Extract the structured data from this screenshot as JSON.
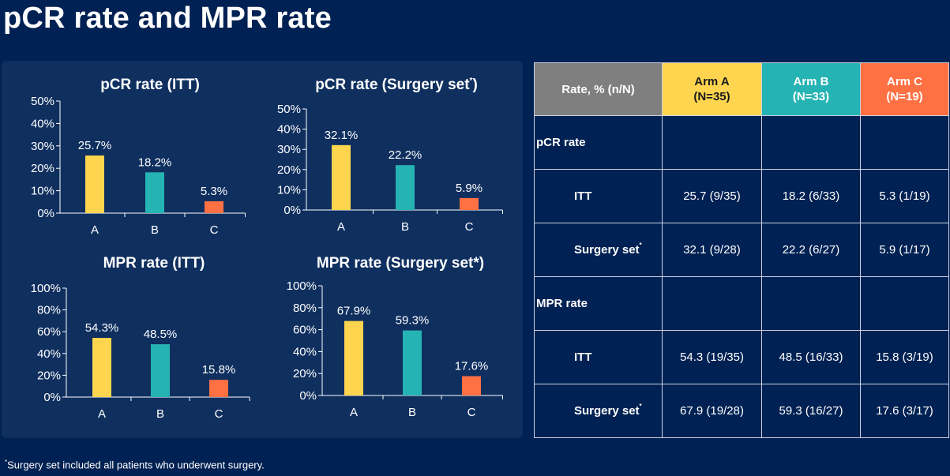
{
  "page": {
    "title": "pCR rate and MPR rate",
    "footnote_mark": "*",
    "footnote": "Surgery set included all patients who underwent surgery."
  },
  "colors": {
    "background": "#002153",
    "panel": "#0f2f5f",
    "arm_a": "#ffd54f",
    "arm_b": "#26b3b3",
    "arm_c": "#ff7043",
    "header_gray": "#7f7f7f"
  },
  "chart_data": [
    {
      "type": "bar",
      "title": "pCR rate (ITT)",
      "categories": [
        "A",
        "B",
        "C"
      ],
      "values": [
        25.7,
        18.2,
        5.3
      ],
      "value_labels": [
        "25.7%",
        "18.2%",
        "5.3%"
      ],
      "ylim": [
        0,
        50
      ],
      "yticks": [
        0,
        10,
        20,
        30,
        40,
        50
      ],
      "ytick_labels": [
        "0%",
        "10%",
        "20%",
        "30%",
        "40%",
        "50%"
      ],
      "xlabel": "",
      "ylabel": "",
      "grid": false
    },
    {
      "type": "bar",
      "title": "pCR rate (Surgery set",
      "title_sup": "*",
      "title_suffix": ")",
      "categories": [
        "A",
        "B",
        "C"
      ],
      "values": [
        32.1,
        22.2,
        5.9
      ],
      "value_labels": [
        "32.1%",
        "22.2%",
        "5.9%"
      ],
      "ylim": [
        0,
        50
      ],
      "yticks": [
        0,
        10,
        20,
        30,
        40,
        50
      ],
      "ytick_labels": [
        "0%",
        "10%",
        "20%",
        "30%",
        "40%",
        "50%"
      ],
      "xlabel": "",
      "ylabel": "",
      "grid": false
    },
    {
      "type": "bar",
      "title": "MPR rate (ITT)",
      "categories": [
        "A",
        "B",
        "C"
      ],
      "values": [
        54.3,
        48.5,
        15.8
      ],
      "value_labels": [
        "54.3%",
        "48.5%",
        "15.8%"
      ],
      "ylim": [
        0,
        100
      ],
      "yticks": [
        0,
        20,
        40,
        60,
        80,
        100
      ],
      "ytick_labels": [
        "0%",
        "20%",
        "40%",
        "60%",
        "80%",
        "100%"
      ],
      "xlabel": "",
      "ylabel": "",
      "grid": false
    },
    {
      "type": "bar",
      "title": "MPR rate (Surgery set*)",
      "categories": [
        "A",
        "B",
        "C"
      ],
      "values": [
        67.9,
        59.3,
        17.6
      ],
      "value_labels": [
        "67.9%",
        "59.3%",
        "17.6%"
      ],
      "ylim": [
        0,
        100
      ],
      "yticks": [
        0,
        20,
        40,
        60,
        80,
        100
      ],
      "ytick_labels": [
        "0%",
        "20%",
        "40%",
        "60%",
        "80%",
        "100%"
      ],
      "xlabel": "",
      "ylabel": "",
      "grid": false
    }
  ],
  "table": {
    "header": {
      "rate": "Rate, % (n/N)",
      "arm_a": "Arm A",
      "arm_a_n": "(N=35)",
      "arm_b": "Arm B",
      "arm_b_n": "(N=33)",
      "arm_c": "Arm C",
      "arm_c_n": "(N=19)"
    },
    "sections": [
      {
        "label": "pCR rate",
        "rows": [
          {
            "label": "ITT",
            "sup": "",
            "a": "25.7 (9/35)",
            "b": "18.2 (6/33)",
            "c": "5.3 (1/19)"
          },
          {
            "label": "Surgery set",
            "sup": "*",
            "a": "32.1 (9/28)",
            "b": "22.2 (6/27)",
            "c": "5.9 (1/17)"
          }
        ]
      },
      {
        "label": "MPR rate",
        "rows": [
          {
            "label": "ITT",
            "sup": "",
            "a": "54.3 (19/35)",
            "b": "48.5 (16/33)",
            "c": "15.8 (3/19)"
          },
          {
            "label": "Surgery set",
            "sup": "*",
            "a": "67.9 (19/28)",
            "b": "59.3 (16/27)",
            "c": "17.6 (3/17)"
          }
        ]
      }
    ]
  }
}
